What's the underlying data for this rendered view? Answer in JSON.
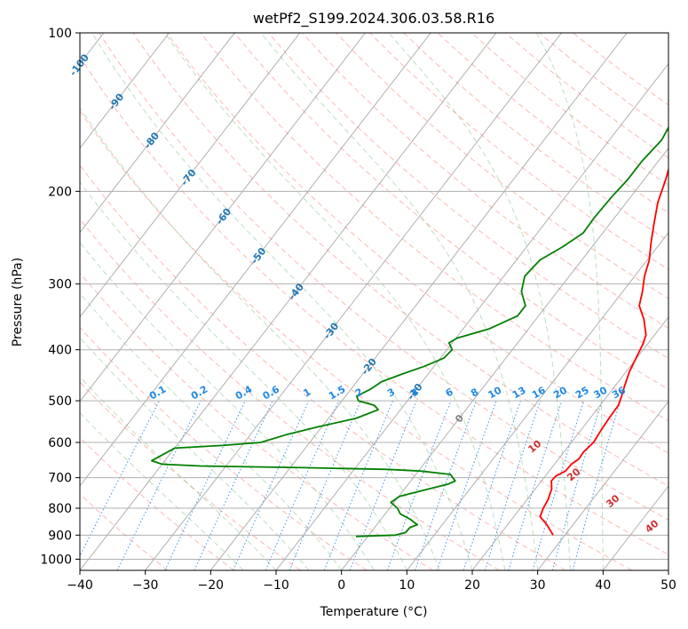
{
  "chart_data": {
    "type": "line",
    "subtype": "skew-t log-p diagram",
    "title": "wetPf2_S199.2024.306.03.58.R16",
    "xlabel": "Temperature (°C)",
    "ylabel": "Pressure (hPa)",
    "xlim": [
      -40,
      50
    ],
    "ylim": [
      1050,
      100
    ],
    "y_scale": "log",
    "grid": true,
    "x_ticks": [
      -40,
      -30,
      -20,
      -10,
      0,
      10,
      20,
      30,
      40,
      50
    ],
    "y_ticks": [
      100,
      200,
      300,
      400,
      500,
      600,
      700,
      800,
      900,
      1000
    ],
    "colors": {
      "temperature": "#ff0000",
      "dewpoint": "#008000",
      "isotherm_label": "#1f77b4",
      "mixing_ratio": "#1e88e5",
      "dry_adiabat": "#fa8072",
      "moist_adiabat": "#66bb6a",
      "dry_adiabat_label": "#d32f2f",
      "zero_isotherm_label": "#808080"
    },
    "series": [
      {
        "name": "",
        "color": "#ff0000",
        "points": [
          [
            28.2,
            900
          ],
          [
            26,
            860
          ],
          [
            24,
            830
          ],
          [
            23.5,
            800
          ],
          [
            23.2,
            770
          ],
          [
            22.5,
            735
          ],
          [
            21.5,
            710
          ],
          [
            21.6,
            695
          ],
          [
            22.5,
            680
          ],
          [
            22.6,
            660
          ],
          [
            23.1,
            645
          ],
          [
            23,
            625
          ],
          [
            23.4,
            600
          ],
          [
            23.1,
            570
          ],
          [
            22.9,
            540
          ],
          [
            22.8,
            510
          ],
          [
            22.2,
            490
          ],
          [
            21.5,
            470
          ],
          [
            20.5,
            440
          ],
          [
            19.8,
            410
          ],
          [
            19.3,
            390
          ],
          [
            18.7,
            375
          ],
          [
            16.5,
            350
          ],
          [
            14.2,
            330
          ],
          [
            13,
            310
          ],
          [
            11.5,
            290
          ],
          [
            10.3,
            270
          ],
          [
            8.5,
            250
          ],
          [
            6.7,
            230
          ],
          [
            4.8,
            210
          ],
          [
            3.3,
            190
          ],
          [
            1.9,
            175
          ],
          [
            1.2,
            160
          ],
          [
            1.3,
            150
          ],
          [
            1.8,
            140
          ],
          [
            1.6,
            130
          ],
          [
            1.1,
            120
          ],
          [
            1.2,
            112
          ],
          [
            2.5,
            105
          ],
          [
            4.2,
            100
          ]
        ]
      },
      {
        "name": "",
        "color": "#008000",
        "points": [
          [
            -1.8,
            905
          ],
          [
            4.1,
            900
          ],
          [
            5.3,
            890
          ],
          [
            5.4,
            870
          ],
          [
            6.2,
            860
          ],
          [
            4.5,
            840
          ],
          [
            2.3,
            820
          ],
          [
            1.2,
            800
          ],
          [
            -0.5,
            780
          ],
          [
            0.1,
            760
          ],
          [
            3,
            740
          ],
          [
            6.1,
            720
          ],
          [
            6.8,
            710
          ],
          [
            5.3,
            690
          ],
          [
            0.3,
            680
          ],
          [
            -5,
            675
          ],
          [
            -18,
            670
          ],
          [
            -34,
            665
          ],
          [
            -40,
            660
          ],
          [
            -42,
            650
          ],
          [
            -40,
            615
          ],
          [
            -33,
            608
          ],
          [
            -27.5,
            600
          ],
          [
            -24.5,
            580
          ],
          [
            -20.5,
            560
          ],
          [
            -15.8,
            540
          ],
          [
            -13.4,
            520
          ],
          [
            -14.5,
            510
          ],
          [
            -17.5,
            500
          ],
          [
            -18.3,
            490
          ],
          [
            -17,
            475
          ],
          [
            -16.2,
            460
          ],
          [
            -14,
            445
          ],
          [
            -11.5,
            430
          ],
          [
            -9.5,
            415
          ],
          [
            -9.2,
            400
          ],
          [
            -10.5,
            388
          ],
          [
            -9.8,
            380
          ],
          [
            -6,
            365
          ],
          [
            -3.2,
            345
          ],
          [
            -3.2,
            330
          ],
          [
            -5.5,
            310
          ],
          [
            -6.8,
            290
          ],
          [
            -6.4,
            270
          ],
          [
            -4.5,
            255
          ],
          [
            -3,
            240
          ],
          [
            -3.1,
            225
          ],
          [
            -2.9,
            205
          ],
          [
            -2.5,
            190
          ],
          [
            -2.5,
            175
          ],
          [
            -2,
            160
          ],
          [
            -2.5,
            150
          ],
          [
            -1.8,
            140
          ],
          [
            -1.8,
            130
          ],
          [
            -3.2,
            120
          ],
          [
            -2.8,
            112
          ],
          [
            -1.2,
            105
          ],
          [
            -0.2,
            100
          ]
        ]
      }
    ],
    "isotherm_labels": [
      "-100",
      "-90",
      "-80",
      "-70",
      "-60",
      "-50",
      "-40",
      "-30",
      "-20",
      "-10",
      "0"
    ],
    "mixing_ratio_labels": [
      "0.1",
      "0.2",
      "0.4",
      "0.6",
      "1",
      "1.5",
      "2",
      "3",
      "4",
      "6",
      "8",
      "10",
      "13",
      "16",
      "20",
      "25",
      "30",
      "36"
    ],
    "dry_adiabat_labels": [
      "10",
      "20",
      "30",
      "40"
    ]
  }
}
